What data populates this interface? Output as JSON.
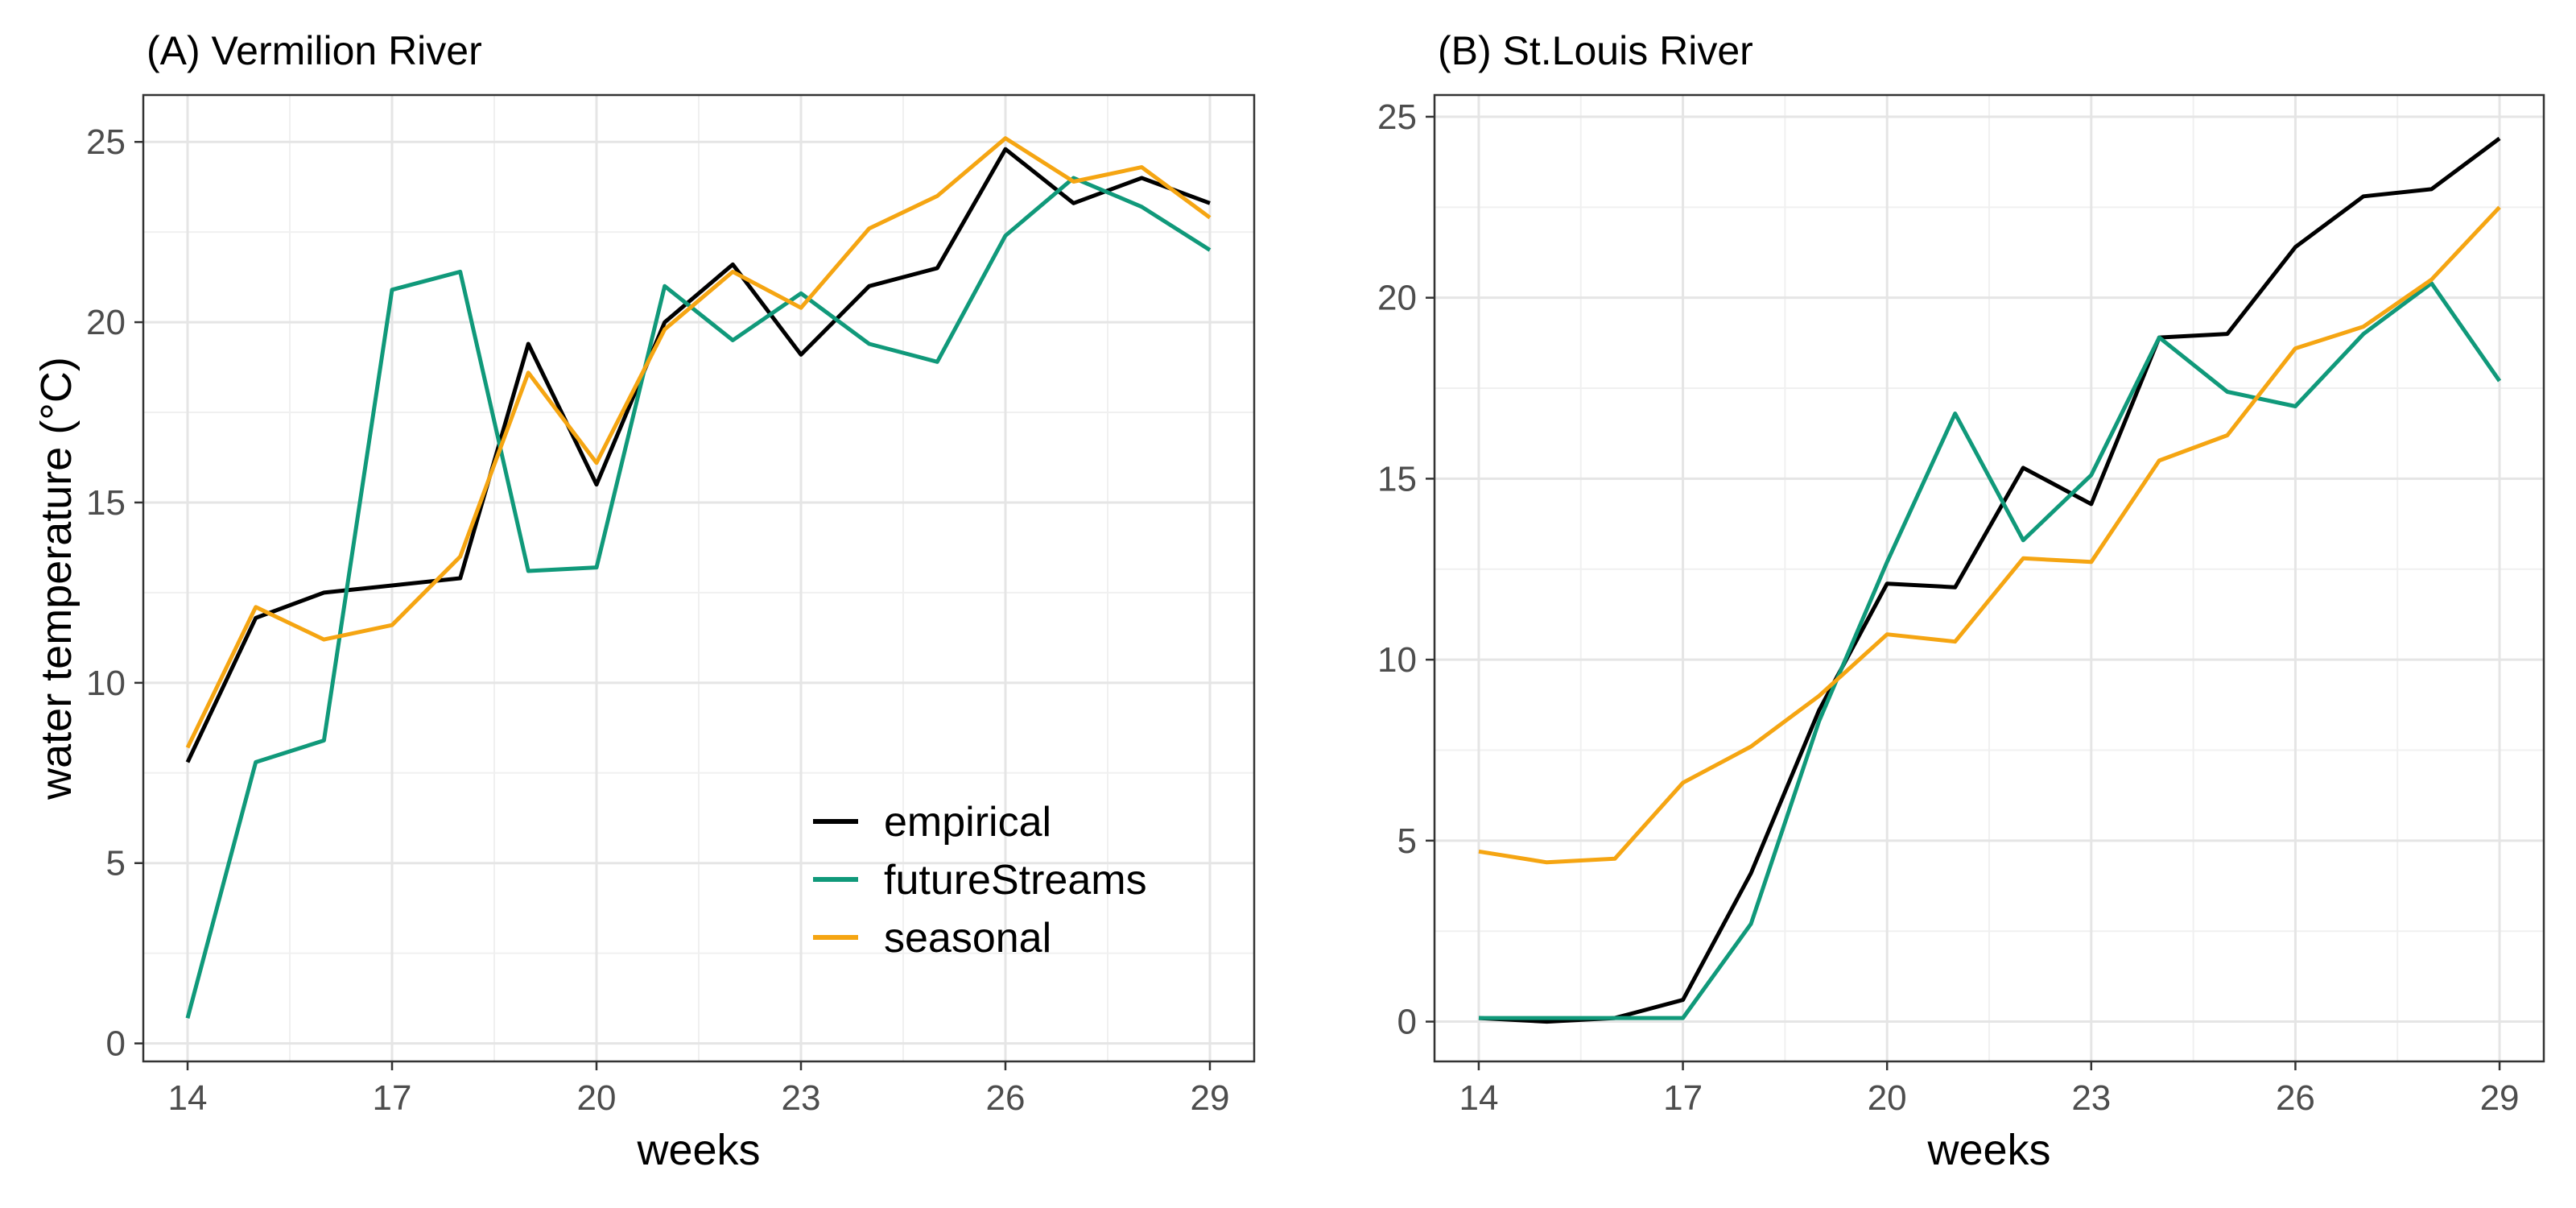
{
  "chart_data": [
    {
      "type": "line",
      "title": "(A) Vermilion River",
      "xlabel": "weeks",
      "ylabel": "water temperature (°C)",
      "x": [
        14,
        15,
        16,
        17,
        18,
        19,
        20,
        21,
        22,
        23,
        24,
        25,
        26,
        27,
        28,
        29
      ],
      "xticks": [
        14,
        17,
        20,
        23,
        26,
        29
      ],
      "xtick_labels": [
        "14",
        "17",
        "20",
        "23",
        "26",
        "29"
      ],
      "yticks": [
        0,
        5,
        10,
        15,
        20,
        25
      ],
      "ytick_labels": [
        "0",
        "5",
        "10",
        "15",
        "20",
        "25"
      ],
      "xlim": [
        13.35,
        29.65
      ],
      "ylim": [
        -0.5,
        26.3
      ],
      "grid": true,
      "legend": true,
      "legend_position": "bottom-right",
      "series": [
        {
          "name": "empirical",
          "color": "#000000",
          "values": [
            7.8,
            11.8,
            12.5,
            12.7,
            12.9,
            19.4,
            15.5,
            20.0,
            21.6,
            19.1,
            21.0,
            21.5,
            24.8,
            23.3,
            24.0,
            23.3
          ]
        },
        {
          "name": "futureStreams",
          "color": "#10997A",
          "values": [
            0.7,
            7.8,
            8.4,
            20.9,
            21.4,
            13.1,
            13.2,
            21.0,
            19.5,
            20.8,
            19.4,
            18.9,
            22.4,
            24.0,
            23.2,
            22.0
          ]
        },
        {
          "name": "seasonal",
          "color": "#F5A512",
          "values": [
            8.2,
            12.1,
            11.2,
            11.6,
            13.5,
            18.6,
            16.1,
            19.8,
            21.4,
            20.4,
            22.6,
            23.5,
            25.1,
            23.9,
            24.3,
            22.9
          ]
        }
      ]
    },
    {
      "type": "line",
      "title": "(B) St.Louis River",
      "xlabel": "weeks",
      "ylabel": "",
      "x": [
        14,
        15,
        16,
        17,
        18,
        19,
        20,
        21,
        22,
        23,
        24,
        25,
        26,
        27,
        28,
        29
      ],
      "xticks": [
        14,
        17,
        20,
        23,
        26,
        29
      ],
      "xtick_labels": [
        "14",
        "17",
        "20",
        "23",
        "26",
        "29"
      ],
      "yticks": [
        0,
        5,
        10,
        15,
        20,
        25
      ],
      "ytick_labels": [
        "0",
        "5",
        "10",
        "15",
        "20",
        "25"
      ],
      "xlim": [
        13.35,
        29.65
      ],
      "ylim": [
        -1.1,
        25.6
      ],
      "grid": true,
      "legend": false,
      "series": [
        {
          "name": "empirical",
          "color": "#000000",
          "values": [
            0.1,
            0.0,
            0.1,
            0.6,
            4.1,
            8.6,
            12.1,
            12.0,
            15.3,
            14.3,
            18.9,
            19.0,
            21.4,
            22.8,
            23.0,
            24.4
          ]
        },
        {
          "name": "futureStreams",
          "color": "#10997A",
          "values": [
            0.1,
            0.1,
            0.1,
            0.1,
            2.7,
            8.3,
            12.7,
            16.8,
            13.3,
            15.1,
            18.9,
            17.4,
            17.0,
            19.0,
            20.4,
            17.7
          ]
        },
        {
          "name": "seasonal",
          "color": "#F5A512",
          "values": [
            4.7,
            4.4,
            4.5,
            6.6,
            7.6,
            9.0,
            10.7,
            10.5,
            12.8,
            12.7,
            15.5,
            16.2,
            18.6,
            19.2,
            20.5,
            22.5
          ]
        }
      ]
    }
  ]
}
